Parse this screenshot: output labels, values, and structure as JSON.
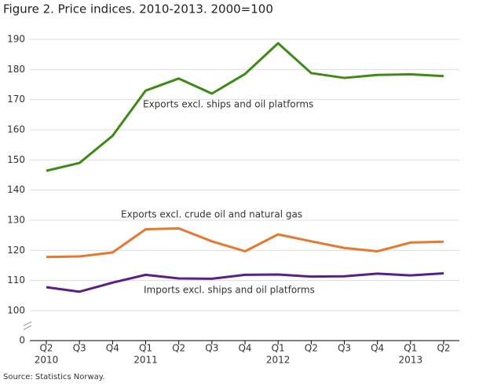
{
  "chart_data": {
    "type": "line",
    "title": "Figure 2. Price indices. 2010-2013. 2000=100",
    "source": "Source: Statistics Norway.",
    "categories": [
      "Q2",
      "Q3",
      "Q4",
      "Q1",
      "Q2",
      "Q3",
      "Q4",
      "Q1",
      "Q2",
      "Q3",
      "Q4",
      "Q1",
      "Q2"
    ],
    "years": [
      "2010",
      null,
      null,
      "2011",
      null,
      null,
      null,
      "2012",
      null,
      null,
      null,
      "2013",
      null
    ],
    "series": [
      {
        "name": "Exports excl. ships and oil platforms",
        "color": "#3d8a14",
        "values": [
          146.4,
          149,
          158,
          173,
          177,
          172,
          178.5,
          188.7,
          178.8,
          177.2,
          178.2,
          178.4,
          177.8
        ]
      },
      {
        "name": "Exports excl. crude oil and natural gas",
        "color": "#e6782f",
        "values": [
          117.8,
          118,
          119.3,
          127,
          127.3,
          123,
          119.7,
          125.3,
          123,
          120.8,
          119.7,
          122.6,
          122.9
        ]
      },
      {
        "name": "Imports excl. ships and oil platforms",
        "color": "#5b1f86",
        "values": [
          107.8,
          106.3,
          109.3,
          111.9,
          110.7,
          110.6,
          111.9,
          112,
          111.3,
          111.4,
          112.3,
          111.7,
          112.4
        ]
      }
    ],
    "ylim": [
      0,
      190
    ],
    "yticks": [
      0,
      100,
      110,
      120,
      130,
      140,
      150,
      160,
      170,
      180,
      190
    ],
    "axis_break": true,
    "grid": true
  }
}
